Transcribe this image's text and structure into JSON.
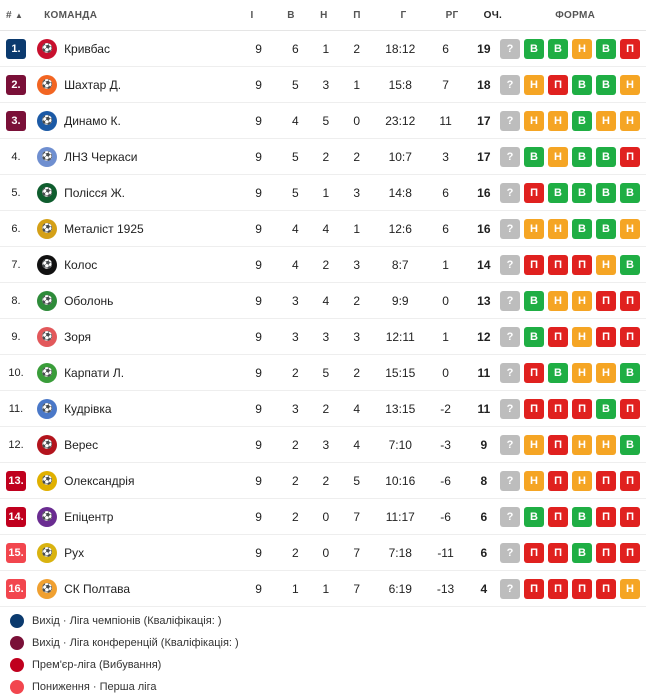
{
  "header": {
    "pos": "#",
    "pos_sort": "▲",
    "team": "КОМАНДА",
    "played": "І",
    "won": "В",
    "drawn": "Н",
    "lost": "П",
    "goals": "Г",
    "diff": "РГ",
    "points": "ОЧ.",
    "form": "ФОРМА"
  },
  "colors": {
    "ucl": "#0b3a6e",
    "uecl": "#7a1038",
    "playoff": "#c0001e",
    "relegation": "#f2464e",
    "win": "#1fae44",
    "draw": "#f5a524",
    "loss": "#e0211f",
    "unknown": "#bdbdbd"
  },
  "rows": [
    {
      "pos": "1.",
      "zone": "ucl",
      "team": "Кривбас",
      "logo_color": "#c8102e",
      "p": "9",
      "w": "6",
      "d": "1",
      "l": "2",
      "g": "18:12",
      "gd": "6",
      "pts": "19",
      "form": [
        "?",
        "В",
        "В",
        "Н",
        "В",
        "П"
      ]
    },
    {
      "pos": "2.",
      "zone": "uecl",
      "team": "Шахтар Д.",
      "logo_color": "#f26522",
      "p": "9",
      "w": "5",
      "d": "3",
      "l": "1",
      "g": "15:8",
      "gd": "7",
      "pts": "18",
      "form": [
        "?",
        "Н",
        "П",
        "В",
        "В",
        "Н"
      ]
    },
    {
      "pos": "3.",
      "zone": "uecl",
      "team": "Динамо К.",
      "logo_color": "#1c5aa6",
      "p": "9",
      "w": "4",
      "d": "5",
      "l": "0",
      "g": "23:12",
      "gd": "11",
      "pts": "17",
      "form": [
        "?",
        "Н",
        "Н",
        "В",
        "Н",
        "Н"
      ]
    },
    {
      "pos": "4.",
      "zone": "",
      "team": "ЛНЗ Черкаси",
      "logo_color": "#6f8fd0",
      "p": "9",
      "w": "5",
      "d": "2",
      "l": "2",
      "g": "10:7",
      "gd": "3",
      "pts": "17",
      "form": [
        "?",
        "В",
        "Н",
        "В",
        "В",
        "П"
      ]
    },
    {
      "pos": "5.",
      "zone": "",
      "team": "Полісся Ж.",
      "logo_color": "#0f5d2e",
      "p": "9",
      "w": "5",
      "d": "1",
      "l": "3",
      "g": "14:8",
      "gd": "6",
      "pts": "16",
      "form": [
        "?",
        "П",
        "В",
        "В",
        "В",
        "В"
      ]
    },
    {
      "pos": "6.",
      "zone": "",
      "team": "Металіст 1925",
      "logo_color": "#d4a017",
      "p": "9",
      "w": "4",
      "d": "4",
      "l": "1",
      "g": "12:6",
      "gd": "6",
      "pts": "16",
      "form": [
        "?",
        "Н",
        "Н",
        "В",
        "В",
        "Н"
      ]
    },
    {
      "pos": "7.",
      "zone": "",
      "team": "Колос",
      "logo_color": "#111111",
      "p": "9",
      "w": "4",
      "d": "2",
      "l": "3",
      "g": "8:7",
      "gd": "1",
      "pts": "14",
      "form": [
        "?",
        "П",
        "П",
        "П",
        "Н",
        "В"
      ]
    },
    {
      "pos": "8.",
      "zone": "",
      "team": "Оболонь",
      "logo_color": "#2e8b3a",
      "p": "9",
      "w": "3",
      "d": "4",
      "l": "2",
      "g": "9:9",
      "gd": "0",
      "pts": "13",
      "form": [
        "?",
        "В",
        "Н",
        "Н",
        "П",
        "П"
      ]
    },
    {
      "pos": "9.",
      "zone": "",
      "team": "Зоря",
      "logo_color": "#e2585b",
      "p": "9",
      "w": "3",
      "d": "3",
      "l": "3",
      "g": "12:11",
      "gd": "1",
      "pts": "12",
      "form": [
        "?",
        "В",
        "П",
        "Н",
        "П",
        "П"
      ]
    },
    {
      "pos": "10.",
      "zone": "",
      "team": "Карпати Л.",
      "logo_color": "#3a9d3a",
      "p": "9",
      "w": "2",
      "d": "5",
      "l": "2",
      "g": "15:15",
      "gd": "0",
      "pts": "11",
      "form": [
        "?",
        "П",
        "В",
        "Н",
        "Н",
        "В"
      ]
    },
    {
      "pos": "11.",
      "zone": "",
      "team": "Кудрівка",
      "logo_color": "#4a78c8",
      "p": "9",
      "w": "3",
      "d": "2",
      "l": "4",
      "g": "13:15",
      "gd": "-2",
      "pts": "11",
      "form": [
        "?",
        "П",
        "П",
        "П",
        "В",
        "П"
      ]
    },
    {
      "pos": "12.",
      "zone": "",
      "team": "Верес",
      "logo_color": "#b3141d",
      "p": "9",
      "w": "2",
      "d": "3",
      "l": "4",
      "g": "7:10",
      "gd": "-3",
      "pts": "9",
      "form": [
        "?",
        "Н",
        "П",
        "Н",
        "Н",
        "В"
      ]
    },
    {
      "pos": "13.",
      "zone": "playoff",
      "team": "Олександрія",
      "logo_color": "#e0b000",
      "p": "9",
      "w": "2",
      "d": "2",
      "l": "5",
      "g": "10:16",
      "gd": "-6",
      "pts": "8",
      "form": [
        "?",
        "Н",
        "П",
        "Н",
        "П",
        "П"
      ]
    },
    {
      "pos": "14.",
      "zone": "playoff",
      "team": "Епіцентр",
      "logo_color": "#6a2c91",
      "p": "9",
      "w": "2",
      "d": "0",
      "l": "7",
      "g": "11:17",
      "gd": "-6",
      "pts": "6",
      "form": [
        "?",
        "В",
        "П",
        "В",
        "П",
        "П"
      ]
    },
    {
      "pos": "15.",
      "zone": "relegation",
      "team": "Рух",
      "logo_color": "#d9b310",
      "p": "9",
      "w": "2",
      "d": "0",
      "l": "7",
      "g": "7:18",
      "gd": "-11",
      "pts": "6",
      "form": [
        "?",
        "П",
        "П",
        "В",
        "П",
        "П"
      ]
    },
    {
      "pos": "16.",
      "zone": "relegation",
      "team": "СК Полтава",
      "logo_color": "#f0a030",
      "p": "9",
      "w": "1",
      "d": "1",
      "l": "7",
      "g": "6:19",
      "gd": "-13",
      "pts": "4",
      "form": [
        "?",
        "П",
        "П",
        "П",
        "П",
        "Н"
      ]
    }
  ],
  "legend": [
    {
      "zone": "ucl",
      "label": "Вихід · Ліга чемпіонів (Кваліфікація: )"
    },
    {
      "zone": "uecl",
      "label": "Вихід · Ліга конференцій (Кваліфікація: )"
    },
    {
      "zone": "playoff",
      "label": "Прем'єр-ліга (Вибування)"
    },
    {
      "zone": "relegation",
      "label": "Пониження · Перша ліга"
    }
  ]
}
